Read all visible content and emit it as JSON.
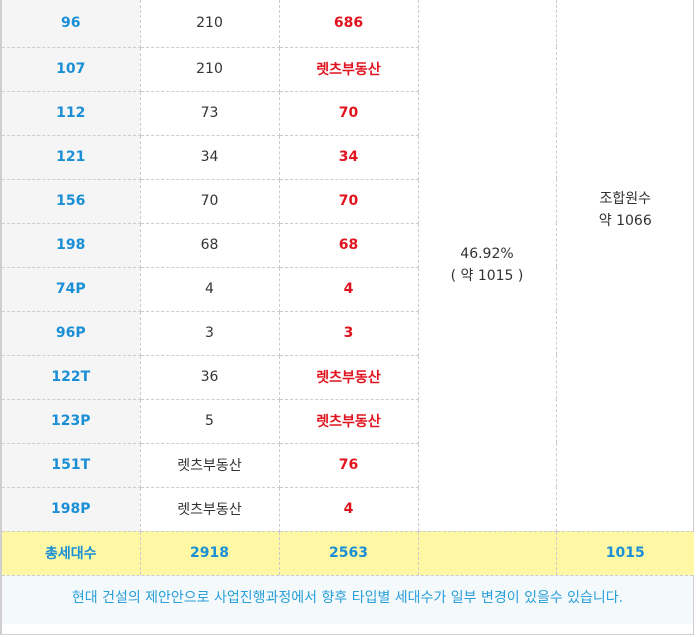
{
  "rows": [
    {
      "type": "96",
      "total": "210",
      "sale": "686"
    },
    {
      "type": "107",
      "total": "210",
      "sale": "렛츠부동산"
    },
    {
      "type": "112",
      "total": "73",
      "sale": "70"
    },
    {
      "type": "121",
      "total": "34",
      "sale": "34"
    },
    {
      "type": "156",
      "total": "70",
      "sale": "70"
    },
    {
      "type": "198",
      "total": "68",
      "sale": "68"
    },
    {
      "type": "74P",
      "total": "4",
      "sale": "4"
    },
    {
      "type": "96P",
      "total": "3",
      "sale": "3"
    },
    {
      "type": "122T",
      "total": "36",
      "sale": "렛츠부동산"
    },
    {
      "type": "123P",
      "total": "5",
      "sale": "렛츠부동산"
    },
    {
      "type": "151T",
      "total": "렛츠부동산",
      "sale": "76"
    },
    {
      "type": "198P",
      "total": "렛츠부동산",
      "sale": "4"
    }
  ],
  "merged": {
    "ratio_line1": "46.92%",
    "ratio_line2": "( 약 1015 )",
    "members_line1": "조합원수",
    "members_line2": "약 1066"
  },
  "total_row": {
    "label": "총세대수",
    "total": "2918",
    "sale": "2563",
    "ratio": "",
    "members": "1015"
  },
  "note": "현대 건설의 제안안으로 사업진행과정에서 향후 타입별 세대수가 일부 변경이 있을수 있습니다.",
  "colors": {
    "type_text": "#1a8fd6",
    "sale_text": "#e0141e",
    "total_row_bg": "#fef8a4",
    "note_text": "#2a9fd8"
  }
}
